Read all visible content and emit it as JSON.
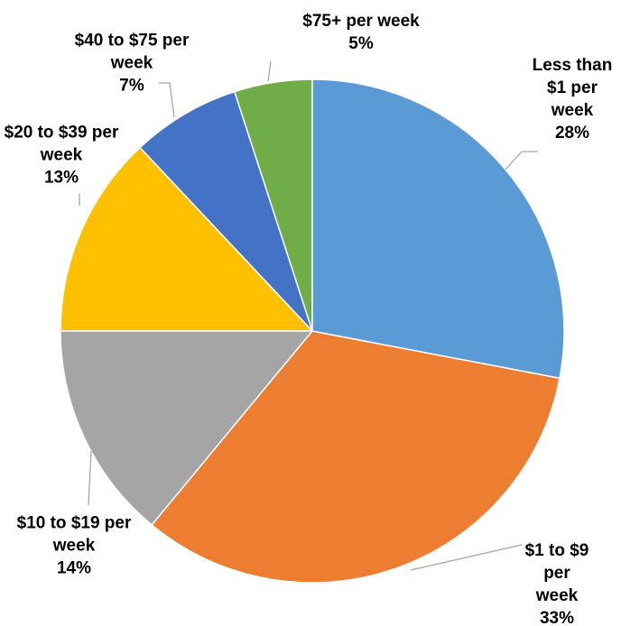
{
  "chart_data": {
    "type": "pie",
    "categories": [
      "Less than $1 per week",
      "$1 to $9 per week",
      "$10 to $19 per week",
      "$20 to $39 per week",
      "$40 to $75 per week",
      "$75+ per week"
    ],
    "values": [
      28,
      33,
      14,
      13,
      7,
      5
    ],
    "value_labels": [
      "28%",
      "33%",
      "14%",
      "13%",
      "7%",
      "5%"
    ],
    "colors": [
      "#5b9bd5",
      "#ed7d31",
      "#a5a5a5",
      "#ffc000",
      "#4472c4",
      "#70ad47"
    ]
  }
}
